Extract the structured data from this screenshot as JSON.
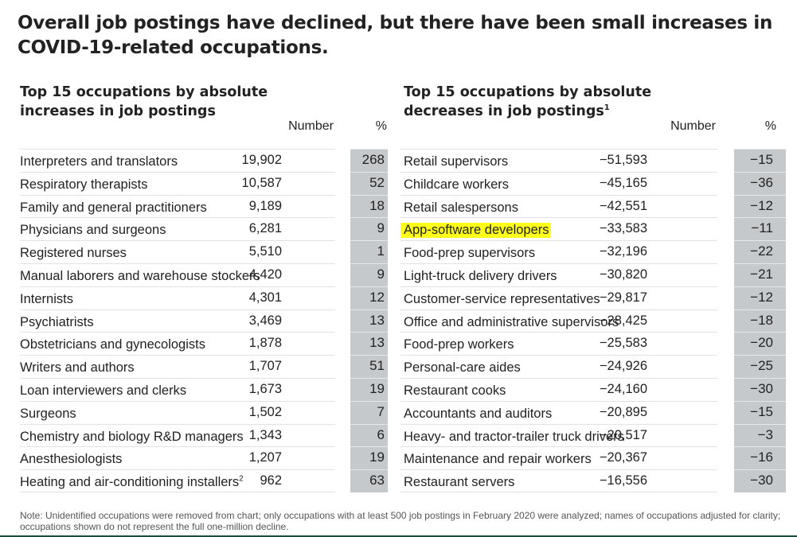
{
  "title": "Overall job postings have declined, but there have been small increases in COVID-19-related occupations.",
  "highlight_color": "#ffff1a",
  "pct_cell_color": "#c6c9cc",
  "increases": {
    "title_line1": "Top 15 occupations by absolute",
    "title_line2": "increases in job postings",
    "col_number": "Number",
    "col_pct": "%",
    "rows": [
      {
        "name": "Interpreters and translators",
        "number": "19,902",
        "pct": "268"
      },
      {
        "name": "Respiratory therapists",
        "number": "10,587",
        "pct": "52"
      },
      {
        "name": "Family and general practitioners",
        "number": "9,189",
        "pct": "18"
      },
      {
        "name": "Physicians and surgeons",
        "number": "6,281",
        "pct": "9"
      },
      {
        "name": "Registered nurses",
        "number": "5,510",
        "pct": "1"
      },
      {
        "name": "Manual laborers and warehouse stockers",
        "number": "4,420",
        "pct": "9"
      },
      {
        "name": "Internists",
        "number": "4,301",
        "pct": "12"
      },
      {
        "name": "Psychiatrists",
        "number": "3,469",
        "pct": "13"
      },
      {
        "name": "Obstetricians and gynecologists",
        "number": "1,878",
        "pct": "13"
      },
      {
        "name": "Writers and authors",
        "number": "1,707",
        "pct": "51"
      },
      {
        "name": "Loan interviewers and clerks",
        "number": "1,673",
        "pct": "19"
      },
      {
        "name": "Surgeons",
        "number": "1,502",
        "pct": "7"
      },
      {
        "name": "Chemistry and biology R&D managers",
        "number": "1,343",
        "pct": "6"
      },
      {
        "name": "Anesthesiologists",
        "number": "1,207",
        "pct": "19"
      },
      {
        "name": "Heating and air-conditioning installers",
        "footnote": "2",
        "number": "962",
        "pct": "63"
      }
    ]
  },
  "decreases": {
    "title_line1": "Top 15 occupations by absolute",
    "title_line2": "decreases in job postings",
    "title_footnote": "1",
    "col_number": "Number",
    "col_pct": "%",
    "rows": [
      {
        "name": "Retail  supervisors",
        "number": "−51,593",
        "pct": "−15"
      },
      {
        "name": "Childcare workers",
        "number": "−45,165",
        "pct": "−36"
      },
      {
        "name": "Retail salespersons",
        "number": "−42,551",
        "pct": "−12"
      },
      {
        "name": "App-software developers",
        "number": "−33,583",
        "pct": "−11",
        "highlighted": true
      },
      {
        "name": "Food-prep supervisors",
        "number": "−32,196",
        "pct": "−22"
      },
      {
        "name": "Light-truck delivery drivers",
        "number": "−30,820",
        "pct": "−21"
      },
      {
        "name": "Customer-service representatives",
        "number": "−29,817",
        "pct": "−12"
      },
      {
        "name": "Office and administrative supervisors",
        "number": "−28,425",
        "pct": "−18"
      },
      {
        "name": "Food-prep workers",
        "number": "−25,583",
        "pct": "−20"
      },
      {
        "name": "Personal-care aides",
        "number": "−24,926",
        "pct": "−25"
      },
      {
        "name": "Restaurant cooks",
        "number": "−24,160",
        "pct": "−30"
      },
      {
        "name": "Accountants and auditors",
        "number": "−20,895",
        "pct": "−15"
      },
      {
        "name": "Heavy- and tractor-trailer truck drivers",
        "number": "−20,517",
        "pct": "−3"
      },
      {
        "name": "Maintenance and repair workers",
        "number": "−20,367",
        "pct": "−16"
      },
      {
        "name": "Restaurant servers",
        "number": "−16,556",
        "pct": "−30"
      }
    ]
  },
  "note": "Note: Unidentified occupations were removed from chart; only occupations with at least 500 job postings in February 2020 were analyzed; names of occupations adjusted for clarity; occupations shown do not represent the full one-million decline."
}
